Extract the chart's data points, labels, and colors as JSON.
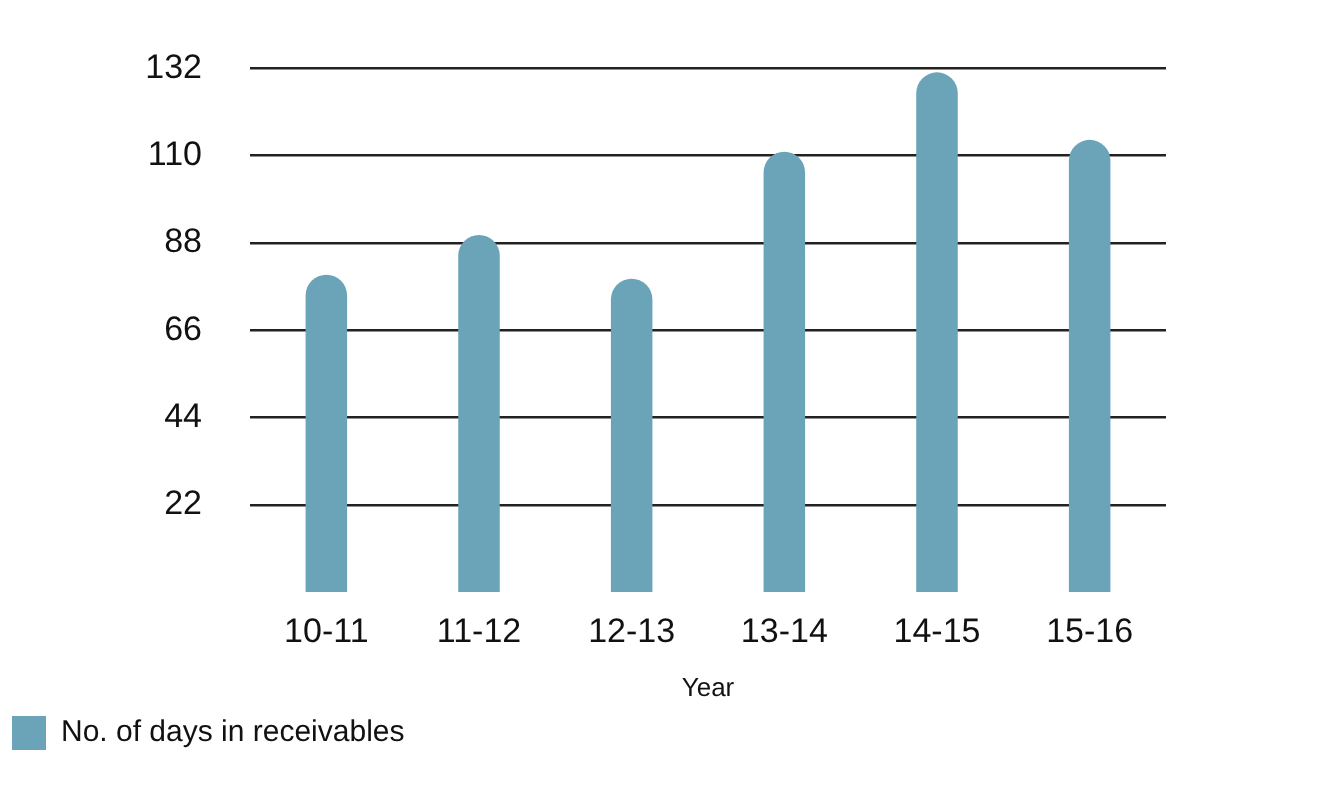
{
  "chart_data": {
    "type": "bar",
    "xlabel": "Year",
    "categories": [
      "10-11",
      "11-12",
      "12-13",
      "13-14",
      "14-15",
      "15-16"
    ],
    "series": [
      {
        "name": "No. of days in receivables",
        "color": "#6ba3b8",
        "values": [
          80,
          90,
          79,
          111,
          131,
          114
        ]
      }
    ],
    "ylim": [
      0,
      132
    ],
    "yticks": [
      22,
      44,
      66,
      88,
      110,
      132
    ],
    "grid": "y",
    "legend": "bottom left"
  }
}
